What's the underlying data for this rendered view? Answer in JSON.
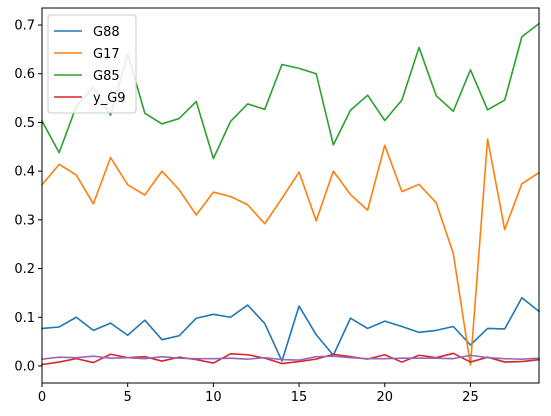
{
  "chart_data": {
    "type": "line",
    "title": "",
    "xlabel": "",
    "ylabel": "",
    "xlim": [
      0,
      29
    ],
    "ylim": [
      -0.035,
      0.735
    ],
    "grid": false,
    "legend_position": "top-left",
    "x": [
      0,
      1,
      2,
      3,
      4,
      5,
      6,
      7,
      8,
      9,
      10,
      11,
      12,
      13,
      14,
      15,
      16,
      17,
      18,
      19,
      20,
      21,
      22,
      23,
      24,
      25,
      26,
      27,
      28,
      29
    ],
    "xticks": [
      0,
      5,
      10,
      15,
      20,
      25
    ],
    "yticks": [
      0.0,
      0.1,
      0.2,
      0.3,
      0.4,
      0.5,
      0.6,
      0.7
    ],
    "xtick_labels": [
      "0",
      "5",
      "10",
      "15",
      "20",
      "25"
    ],
    "ytick_labels": [
      "0.0",
      "0.1",
      "0.2",
      "0.3",
      "0.4",
      "0.5",
      "0.6",
      "0.7"
    ],
    "series": [
      {
        "name": "G88",
        "color": "#1f77b4",
        "values": [
          0.077,
          0.08,
          0.1,
          0.073,
          0.088,
          0.063,
          0.094,
          0.054,
          0.062,
          0.098,
          0.106,
          0.1,
          0.125,
          0.087,
          0.01,
          0.123,
          0.064,
          0.022,
          0.098,
          0.077,
          0.092,
          0.081,
          0.069,
          0.073,
          0.081,
          0.043,
          0.077,
          0.076,
          0.14,
          0.112
        ]
      },
      {
        "name": "G17",
        "color": "#ff7f0e",
        "values": [
          0.372,
          0.414,
          0.392,
          0.333,
          0.428,
          0.372,
          0.351,
          0.4,
          0.362,
          0.31,
          0.357,
          0.348,
          0.331,
          0.292,
          0.344,
          0.398,
          0.298,
          0.4,
          0.352,
          0.32,
          0.453,
          0.358,
          0.373,
          0.335,
          0.231,
          0.002,
          0.466,
          0.28,
          0.374,
          0.397
        ]
      },
      {
        "name": "G85",
        "color": "#2ca02c",
        "values": [
          0.503,
          0.438,
          0.533,
          0.572,
          0.515,
          0.641,
          0.519,
          0.497,
          0.508,
          0.543,
          0.426,
          0.502,
          0.538,
          0.527,
          0.619,
          0.611,
          0.6,
          0.454,
          0.525,
          0.556,
          0.504,
          0.546,
          0.654,
          0.555,
          0.523,
          0.608,
          0.526,
          0.546,
          0.676,
          0.703
        ]
      },
      {
        "name": "y_G9",
        "color": "#d62728",
        "values": [
          0.003,
          0.008,
          0.015,
          0.007,
          0.024,
          0.017,
          0.019,
          0.01,
          0.018,
          0.013,
          0.006,
          0.025,
          0.023,
          0.016,
          0.005,
          0.009,
          0.014,
          0.024,
          0.019,
          0.014,
          0.023,
          0.008,
          0.022,
          0.017,
          0.026,
          0.008,
          0.018,
          0.008,
          0.009,
          0.013
        ]
      },
      {
        "name": "",
        "color": "#9467bd",
        "values": [
          0.014,
          0.018,
          0.017,
          0.02,
          0.016,
          0.017,
          0.015,
          0.019,
          0.016,
          0.015,
          0.015,
          0.016,
          0.014,
          0.017,
          0.013,
          0.012,
          0.019,
          0.02,
          0.017,
          0.015,
          0.015,
          0.016,
          0.016,
          0.016,
          0.015,
          0.022,
          0.017,
          0.015,
          0.014,
          0.016
        ]
      }
    ]
  }
}
